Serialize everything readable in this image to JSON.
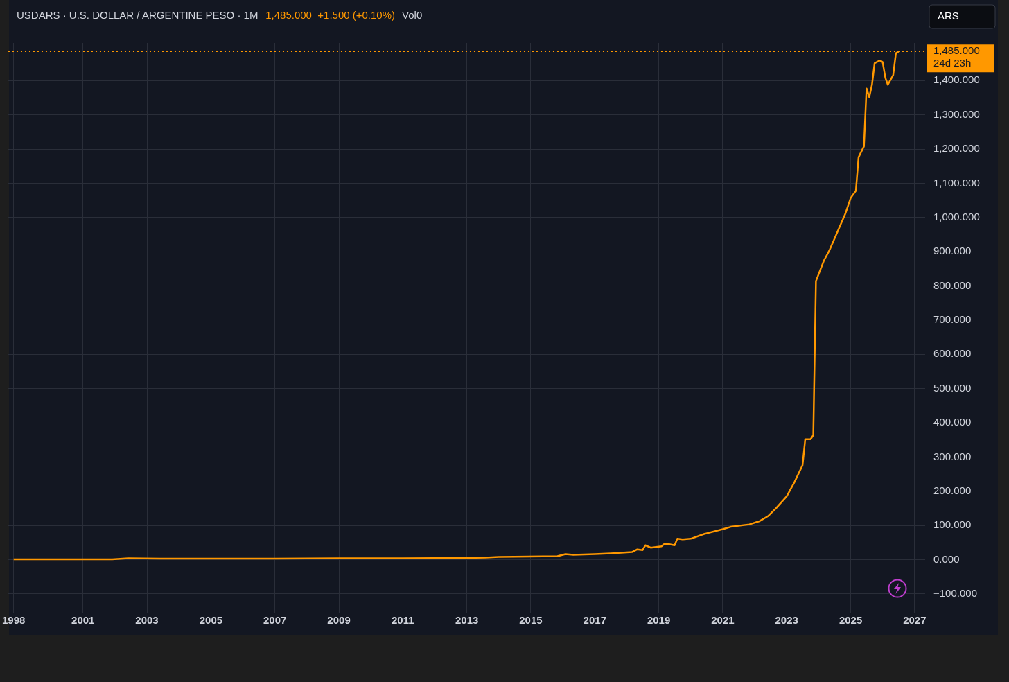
{
  "chart_data": {
    "type": "line",
    "title": "USDARS · U.S. DOLLAR / ARGENTINE PESO · 1M",
    "subtitle": "1,485.000  +1.500 (+0.10%)",
    "annotations": [
      "Vol0",
      "24d 23h",
      "ARS"
    ],
    "x": [
      "1998-11",
      "2001-12",
      "2002-06",
      "2003-06",
      "2005-01",
      "2007-01",
      "2009-01",
      "2011-01",
      "2013-01",
      "2013-08",
      "2014-01",
      "2015-11",
      "2016-02",
      "2016-05",
      "2017-01",
      "2017-07",
      "2018-03",
      "2018-05",
      "2018-07",
      "2018-08",
      "2018-10",
      "2019-02",
      "2019-03",
      "2019-05",
      "2019-07",
      "2019-08",
      "2019-10",
      "2020-01",
      "2020-06",
      "2021-01",
      "2021-04",
      "2021-11",
      "2022-03",
      "2022-06",
      "2022-09",
      "2023-01",
      "2023-04",
      "2023-07",
      "2023-08",
      "2023-10",
      "2023-11",
      "2023-12",
      "2024-03",
      "2024-05",
      "2024-11",
      "2025-01",
      "2025-03",
      "2025-04",
      "2025-06",
      "2025-07",
      "2025-08",
      "2025-09",
      "2025-10",
      "2025-12",
      "2026-01",
      "2026-02",
      "2026-03",
      "2026-05",
      "2026-06",
      "2026-07"
    ],
    "series": [
      {
        "color": "#ff9800",
        "values": [
          1,
          1,
          4,
          3,
          3,
          3,
          4,
          4,
          5,
          6,
          8,
          10,
          16,
          14,
          16,
          18,
          22,
          30,
          28,
          42,
          35,
          39,
          45,
          45,
          42,
          61,
          59,
          61,
          75,
          89,
          96,
          103,
          113,
          127,
          150,
          185,
          227,
          276,
          352,
          352,
          364,
          814,
          874,
          903,
          1011,
          1057,
          1078,
          1176,
          1208,
          1377,
          1352,
          1388,
          1451,
          1459,
          1454,
          1408,
          1388,
          1416,
          1480,
          1485
        ]
      }
    ],
    "xlim": [
      "1998-09",
      "2027-05"
    ],
    "xticks": [
      {
        "value": "1998-11",
        "label": "1998"
      },
      "2001",
      "2003",
      "2005",
      "2007",
      "2009",
      "2011",
      "2013",
      "2015",
      "2017",
      "2019",
      "2021",
      "2023",
      "2025",
      "2027"
    ],
    "ylim": [
      -155,
      1510
    ],
    "yticks": [
      {
        "value": -100,
        "label": "−100.000"
      },
      {
        "value": 0,
        "label": "0.000"
      },
      {
        "value": 100,
        "label": "100.000"
      },
      {
        "value": 200,
        "label": "200.000"
      },
      {
        "value": 300,
        "label": "300.000"
      },
      {
        "value": 400,
        "label": "400.000"
      },
      {
        "value": 500,
        "label": "500.000"
      },
      {
        "value": 600,
        "label": "600.000"
      },
      {
        "value": 700,
        "label": "700.000"
      },
      {
        "value": 800,
        "label": "800.000"
      },
      {
        "value": 900,
        "label": "900.000"
      },
      {
        "value": 1000,
        "label": "1,000.000"
      },
      {
        "value": 1100,
        "label": "1,100.000"
      },
      {
        "value": 1200,
        "label": "1,200.000"
      },
      {
        "value": 1300,
        "label": "1,300.000"
      },
      {
        "value": 1400,
        "label": "1,400.000"
      }
    ],
    "ref_lines": [
      {
        "axis": "y",
        "value": 1485,
        "label": "1,485.000",
        "color": "#ff9800",
        "line_style": "dotted"
      }
    ],
    "grid": true,
    "legend": false,
    "marker": "none",
    "line_style": "solid"
  }
}
